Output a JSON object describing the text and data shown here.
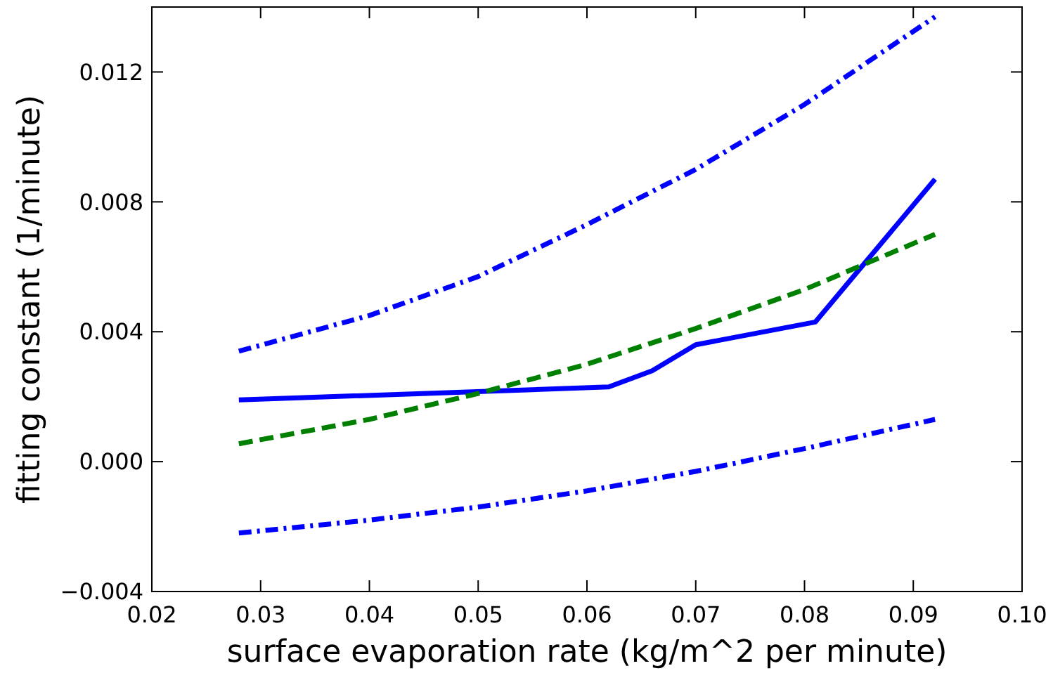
{
  "chart_data": {
    "type": "line",
    "xlabel": "surface evaporation rate (kg/m^2 per minute)",
    "ylabel": "fitting constant (1/minute)",
    "xlim": [
      0.02,
      0.1
    ],
    "xticks": [
      {
        "value": 0.02,
        "label": "0.02"
      },
      {
        "value": 0.03,
        "label": "0.03"
      },
      {
        "value": 0.04,
        "label": "0.04"
      },
      {
        "value": 0.05,
        "label": "0.05"
      },
      {
        "value": 0.06,
        "label": "0.06"
      },
      {
        "value": 0.07,
        "label": "0.07"
      },
      {
        "value": 0.08,
        "label": "0.08"
      },
      {
        "value": 0.09,
        "label": "0.09"
      },
      {
        "value": 0.1,
        "label": "0.10"
      }
    ],
    "ylim": [
      -0.004,
      0.014
    ],
    "yticks": [
      {
        "value": -0.004,
        "label": "−0.004"
      },
      {
        "value": 0,
        "label": "0.000"
      },
      {
        "value": 0.004,
        "label": "0.004"
      },
      {
        "value": 0.008,
        "label": "0.008"
      },
      {
        "value": 0.012,
        "label": "0.012"
      }
    ],
    "grid": false,
    "marker": "none",
    "series": [
      {
        "color": "#0000ff",
        "line_style": "solid",
        "x": [
          0.028,
          0.062,
          0.066,
          0.07,
          0.081,
          0.092
        ],
        "values": [
          0.0019,
          0.0023,
          0.0028,
          0.0036,
          0.0043,
          0.0087
        ]
      },
      {
        "color": "#008000",
        "line_style": "dashed",
        "x": [
          0.028,
          0.04,
          0.05,
          0.06,
          0.07,
          0.08,
          0.092
        ],
        "values": [
          0.00055,
          0.0013,
          0.0021,
          0.003,
          0.0041,
          0.0053,
          0.007
        ]
      },
      {
        "color": "#0000ff",
        "line_style": "dotted",
        "x": [
          0.028,
          0.04,
          0.05,
          0.06,
          0.07,
          0.08,
          0.092
        ],
        "values": [
          0.0034,
          0.0045,
          0.0057,
          0.0073,
          0.009,
          0.011,
          0.0137
        ]
      },
      {
        "color": "#0000ff",
        "line_style": "dotted",
        "x": [
          0.028,
          0.04,
          0.05,
          0.06,
          0.07,
          0.08,
          0.092
        ],
        "values": [
          -0.0022,
          -0.0018,
          -0.0014,
          -0.0009,
          -0.0003,
          0.0004,
          0.0013
        ]
      }
    ]
  }
}
